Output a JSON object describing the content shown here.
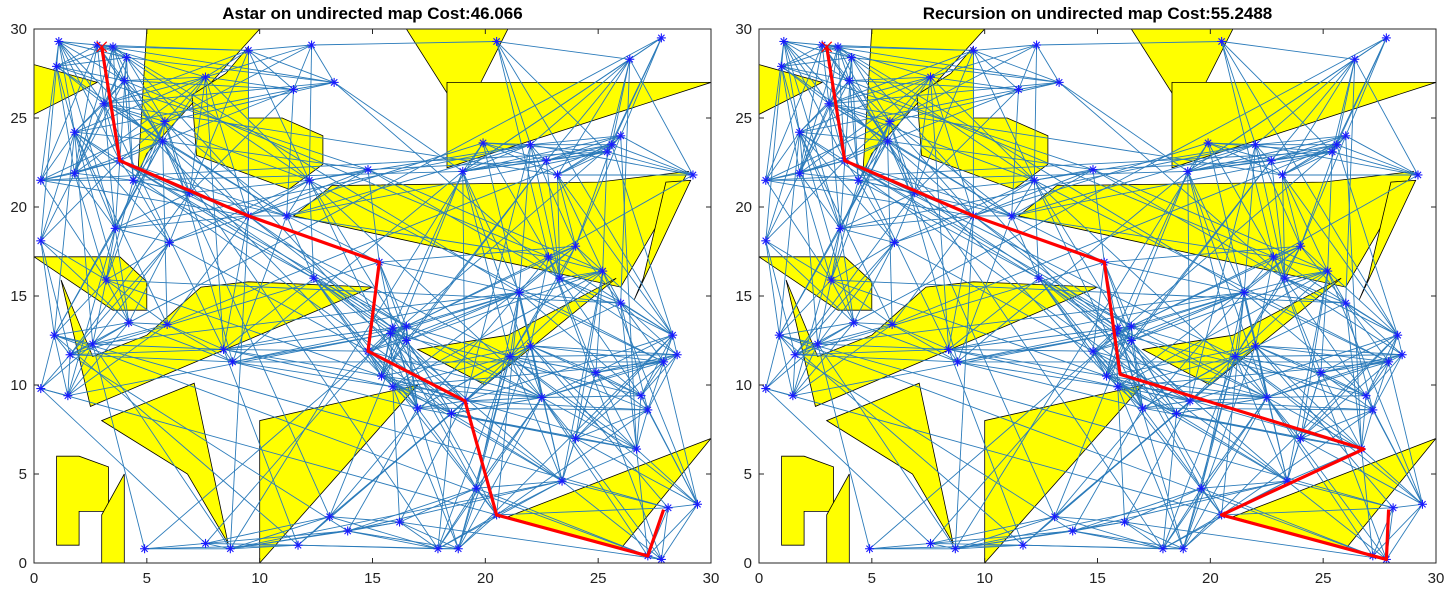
{
  "chart_data": [
    {
      "type": "scatter",
      "title": "Astar on undirected map  Cost:46.066",
      "xlim": [
        0,
        30
      ],
      "ylim": [
        0,
        30
      ],
      "xticks": [
        "0",
        "5",
        "10",
        "15",
        "20",
        "25",
        "30"
      ],
      "yticks": [
        "0",
        "5",
        "10",
        "15",
        "20",
        "25",
        "30"
      ],
      "path": [
        [
          3.0,
          29.0
        ],
        [
          3.8,
          22.6
        ],
        [
          9.5,
          19.5
        ],
        [
          15.3,
          16.9
        ],
        [
          14.8,
          11.9
        ],
        [
          19.1,
          9.1
        ],
        [
          20.5,
          2.7
        ],
        [
          27.2,
          0.4
        ],
        [
          27.9,
          3.0
        ]
      ],
      "path_color": "#ff0000",
      "colors": {
        "obstacle": "#ffff00",
        "edges": "#2b7bba",
        "nodes": "#1a1aff"
      }
    },
    {
      "type": "scatter",
      "title": "Recursion on undirected map  Cost:55.2488",
      "xlim": [
        0,
        30
      ],
      "ylim": [
        0,
        30
      ],
      "xticks": [
        "0",
        "5",
        "10",
        "15",
        "20",
        "25",
        "30"
      ],
      "yticks": [
        "0",
        "5",
        "10",
        "15",
        "20",
        "25",
        "30"
      ],
      "path": [
        [
          3.0,
          29.0
        ],
        [
          3.8,
          22.6
        ],
        [
          9.5,
          19.5
        ],
        [
          15.3,
          16.9
        ],
        [
          16.0,
          10.6
        ],
        [
          26.8,
          6.4
        ],
        [
          20.5,
          2.7
        ],
        [
          27.8,
          0.2
        ],
        [
          27.9,
          3.0
        ]
      ],
      "path_color": "#ff0000",
      "colors": {
        "obstacle": "#ffff00",
        "edges": "#2b7bba",
        "nodes": "#1a1aff"
      }
    }
  ],
  "map": {
    "nodes": [
      [
        1.1,
        29.3
      ],
      [
        2.8,
        29.1
      ],
      [
        3.5,
        29.0
      ],
      [
        4.1,
        28.4
      ],
      [
        1.0,
        27.9
      ],
      [
        4.0,
        27.1
      ],
      [
        3.1,
        25.8
      ],
      [
        1.8,
        24.2
      ],
      [
        0.3,
        21.5
      ],
      [
        1.8,
        21.9
      ],
      [
        3.8,
        22.6
      ],
      [
        4.4,
        21.5
      ],
      [
        6.9,
        20.8
      ],
      [
        0.3,
        18.1
      ],
      [
        3.6,
        18.8
      ],
      [
        6.0,
        18.0
      ],
      [
        5.8,
        24.8
      ],
      [
        5.7,
        23.7
      ],
      [
        7.6,
        27.3
      ],
      [
        9.5,
        28.8
      ],
      [
        11.5,
        26.6
      ],
      [
        12.3,
        29.1
      ],
      [
        13.3,
        27.0
      ],
      [
        9.5,
        19.5
      ],
      [
        11.2,
        19.5
      ],
      [
        12.2,
        21.5
      ],
      [
        12.4,
        16.0
      ],
      [
        15.3,
        16.9
      ],
      [
        20.5,
        29.3
      ],
      [
        27.8,
        29.5
      ],
      [
        26.4,
        28.3
      ],
      [
        19.9,
        23.6
      ],
      [
        22.0,
        23.5
      ],
      [
        22.7,
        22.6
      ],
      [
        23.2,
        21.8
      ],
      [
        26.0,
        24.0
      ],
      [
        25.4,
        23.1
      ],
      [
        25.6,
        23.5
      ],
      [
        14.8,
        22.1
      ],
      [
        19.0,
        22.0
      ],
      [
        29.2,
        21.8
      ],
      [
        24.0,
        17.8
      ],
      [
        22.8,
        17.2
      ],
      [
        21.5,
        15.2
      ],
      [
        23.3,
        16.0
      ],
      [
        0.9,
        12.8
      ],
      [
        1.6,
        11.7
      ],
      [
        2.6,
        12.3
      ],
      [
        3.2,
        15.9
      ],
      [
        4.2,
        13.5
      ],
      [
        5.9,
        13.4
      ],
      [
        8.4,
        12.0
      ],
      [
        8.8,
        11.3
      ],
      [
        1.5,
        9.4
      ],
      [
        0.3,
        9.8
      ],
      [
        15.9,
        13.2
      ],
      [
        15.8,
        12.9
      ],
      [
        16.5,
        12.5
      ],
      [
        16.5,
        13.3
      ],
      [
        15.4,
        10.5
      ],
      [
        15.9,
        9.9
      ],
      [
        14.8,
        11.9
      ],
      [
        19.1,
        9.1
      ],
      [
        21.1,
        11.6
      ],
      [
        22.0,
        12.2
      ],
      [
        17.0,
        8.7
      ],
      [
        18.5,
        8.4
      ],
      [
        25.2,
        16.4
      ],
      [
        26.0,
        14.6
      ],
      [
        28.3,
        12.8
      ],
      [
        28.5,
        11.7
      ],
      [
        27.9,
        11.3
      ],
      [
        27.2,
        8.6
      ],
      [
        26.7,
        6.4
      ],
      [
        26.9,
        9.4
      ],
      [
        24.9,
        10.7
      ],
      [
        16.2,
        2.3
      ],
      [
        13.9,
        1.8
      ],
      [
        17.9,
        0.8
      ],
      [
        18.8,
        0.8
      ],
      [
        20.5,
        2.7
      ],
      [
        23.4,
        4.6
      ],
      [
        27.2,
        0.4
      ],
      [
        27.8,
        0.2
      ],
      [
        28.1,
        3.1
      ],
      [
        29.4,
        3.3
      ],
      [
        11.7,
        1.0
      ],
      [
        13.1,
        2.6
      ],
      [
        19.6,
        4.2
      ],
      [
        4.9,
        0.8
      ],
      [
        7.6,
        1.1
      ],
      [
        8.7,
        0.8
      ],
      [
        22.5,
        9.3
      ],
      [
        24.0,
        7.0
      ]
    ],
    "obstacles": [
      [
        [
          0,
          28
        ],
        [
          2.8,
          27
        ],
        [
          0,
          25.2
        ]
      ],
      [
        [
          5.0,
          30
        ],
        [
          10.0,
          30
        ],
        [
          5.0,
          23.0
        ],
        [
          4.6,
          21.8
        ]
      ],
      [
        [
          7.0,
          26.3
        ],
        [
          8.5,
          27.5
        ],
        [
          9.5,
          29.0
        ],
        [
          9.5,
          25.0
        ],
        [
          11.0,
          25.0
        ],
        [
          12.8,
          24.0
        ],
        [
          12.8,
          22.4
        ],
        [
          11.3,
          21.0
        ],
        [
          7.2,
          22.9
        ]
      ],
      [
        [
          16.5,
          30
        ],
        [
          21.0,
          30
        ],
        [
          19.0,
          25.0
        ]
      ],
      [
        [
          18.3,
          27.0
        ],
        [
          30.0,
          27.0
        ],
        [
          18.3,
          22.2
        ]
      ],
      [
        [
          11.5,
          19.5
        ],
        [
          13.2,
          21.2
        ],
        [
          25.0,
          21.4
        ],
        [
          29.0,
          22.0
        ],
        [
          26.0,
          15.5
        ]
      ],
      [
        [
          0,
          17.2
        ],
        [
          3.8,
          17.2
        ],
        [
          5.0,
          15.8
        ],
        [
          5.0,
          14.2
        ],
        [
          3.5,
          14.2
        ]
      ],
      [
        [
          1.2,
          15.9
        ],
        [
          2.5,
          8.8
        ],
        [
          15.0,
          15.5
        ],
        [
          9.5,
          15.8
        ],
        [
          7.4,
          15.5
        ],
        [
          5.0,
          12.8
        ],
        [
          2.6,
          11.6
        ]
      ],
      [
        [
          17.0,
          12.0
        ],
        [
          21.0,
          12.8
        ],
        [
          25.8,
          16.0
        ],
        [
          20.0,
          10.0
        ]
      ],
      [
        [
          26.6,
          14.8
        ],
        [
          29.1,
          21.5
        ],
        [
          28.0,
          21.4
        ],
        [
          27.0,
          16.0
        ]
      ],
      [
        [
          3.0,
          8.0
        ],
        [
          6.8,
          5.0
        ],
        [
          8.6,
          1.1
        ],
        [
          7.1,
          10.1
        ]
      ],
      [
        [
          1.0,
          6.0
        ],
        [
          2.0,
          6.0
        ],
        [
          3.3,
          5.4
        ],
        [
          3.3,
          2.9
        ],
        [
          2.0,
          2.9
        ],
        [
          2.0,
          1.0
        ],
        [
          1.0,
          1.0
        ]
      ],
      [
        [
          3.0,
          0
        ],
        [
          4.0,
          0
        ],
        [
          4.0,
          5.0
        ],
        [
          3.0,
          2.7
        ]
      ],
      [
        [
          10.0,
          0
        ],
        [
          10.0,
          8.0
        ],
        [
          17.0,
          10.0
        ]
      ],
      [
        [
          21.0,
          2.6
        ],
        [
          30.0,
          7.0
        ],
        [
          26.0,
          0.8
        ]
      ]
    ]
  }
}
